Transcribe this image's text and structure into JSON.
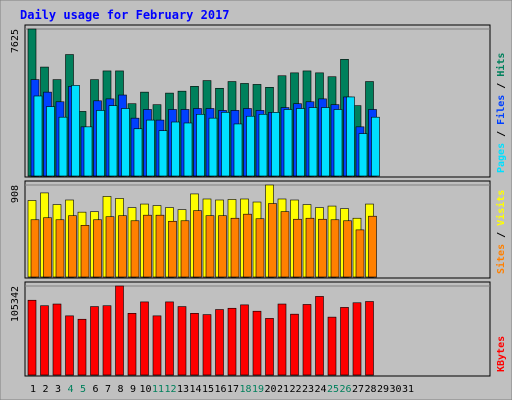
{
  "colors": {
    "background": "#C0C0C0",
    "panel": "#C0C0C0",
    "title": "#0000FF",
    "hits": "#00805C",
    "files": "#0040FF",
    "pages": "#00E0FF",
    "visits": "#FFFF00",
    "sites": "#FF8000",
    "kbytes": "#FF0000",
    "weekend_label": "#00805C",
    "weekday_label": "#000000"
  },
  "chart_data": {
    "type": "bar",
    "title": "Daily usage for February 2017",
    "categories": [
      "1",
      "2",
      "3",
      "4",
      "5",
      "6",
      "7",
      "8",
      "9",
      "10",
      "11",
      "12",
      "13",
      "14",
      "15",
      "16",
      "17",
      "18",
      "19",
      "20",
      "21",
      "22",
      "23",
      "24",
      "25",
      "26",
      "27",
      "28",
      "29",
      "30",
      "31"
    ],
    "weekend_days": [
      "4",
      "5",
      "11",
      "12",
      "18",
      "19",
      "25",
      "26"
    ],
    "panels": [
      {
        "name": "hits-files-pages",
        "max_label": "7625",
        "ylim": [
          0,
          7625
        ],
        "legend": [
          {
            "text": "Hits",
            "color": "#00805C"
          },
          {
            "text": "Files",
            "color": "#0040FF"
          },
          {
            "text": "Pages",
            "color": "#00E0FF"
          }
        ],
        "series": [
          {
            "name": "Hits",
            "values": [
              7625,
              5650,
              5000,
              6300,
              3350,
              5000,
              5450,
              5450,
              3750,
              4350,
              3700,
              4300,
              4400,
              4650,
              4950,
              4550,
              4900,
              4800,
              4750,
              4600,
              5200,
              5350,
              5450,
              5350,
              5150,
              6050,
              3650,
              4900,
              0,
              0,
              0
            ]
          },
          {
            "name": "Files",
            "values": [
              5000,
              4350,
              3850,
              4650,
              2550,
              3900,
              4000,
              4200,
              3000,
              3450,
              2900,
              3450,
              3450,
              3500,
              3500,
              3400,
              3400,
              3500,
              3400,
              3300,
              3550,
              3750,
              3850,
              4000,
              3700,
              4100,
              2550,
              3450,
              0,
              0,
              0
            ]
          },
          {
            "name": "Pages",
            "values": [
              4150,
              3600,
              3050,
              4700,
              2550,
              3400,
              3650,
              3500,
              2450,
              2900,
              2350,
              2800,
              2750,
              3200,
              3000,
              3300,
              2700,
              3100,
              3200,
              3300,
              3450,
              3500,
              3550,
              3550,
              3450,
              4100,
              2200,
              3050,
              0,
              0,
              0
            ]
          }
        ]
      },
      {
        "name": "visits-sites",
        "max_label": "908",
        "ylim": [
          0,
          908
        ],
        "legend": [
          {
            "text": "Visits",
            "color": "#FFFF00"
          },
          {
            "text": "Sites",
            "color": "#FF8000"
          }
        ],
        "series": [
          {
            "name": "Visits",
            "values": [
              755,
              830,
              715,
              760,
              640,
              645,
              795,
              775,
              685,
              720,
              705,
              685,
              665,
              820,
              770,
              760,
              765,
              770,
              740,
              908,
              770,
              760,
              715,
              685,
              700,
              675,
              580,
              720,
              0,
              0,
              0
            ]
          },
          {
            "name": "Sites",
            "values": [
              565,
              585,
              565,
              605,
              510,
              565,
              595,
              605,
              555,
              610,
              610,
              550,
              555,
              655,
              605,
              605,
              580,
              620,
              575,
              725,
              645,
              570,
              580,
              570,
              565,
              555,
              465,
              600,
              0,
              0,
              0
            ]
          }
        ]
      },
      {
        "name": "kbytes",
        "max_label": "105342",
        "ylim": [
          0,
          105342
        ],
        "legend": [
          {
            "text": "KBytes",
            "color": "#FF0000"
          }
        ],
        "series": [
          {
            "name": "KBytes",
            "values": [
              88500,
              82000,
              84000,
              70000,
              66000,
              81000,
              82000,
              105342,
              73000,
              86500,
              70000,
              86500,
              81000,
              73000,
              71500,
              77500,
              79000,
              83000,
              75500,
              67000,
              84000,
              72000,
              83500,
              93000,
              68500,
              80000,
              85500,
              87000,
              0,
              0,
              0
            ]
          }
        ]
      }
    ]
  }
}
